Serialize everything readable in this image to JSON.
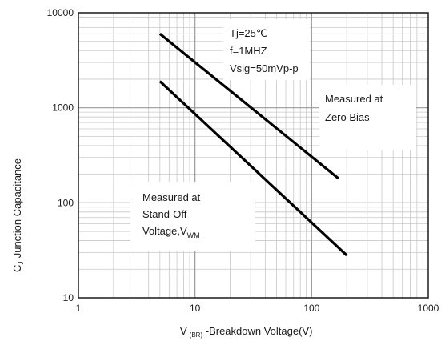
{
  "chart_data": {
    "type": "line",
    "title": "",
    "xlabel": "V(BR) -Breakdown Voltage(V)",
    "xlabel_main": "V",
    "xlabel_sub": "(BR)",
    "xlabel_rest": " -Breakdown Voltage(V)",
    "ylabel": "CJ-Junction Capacitance",
    "ylabel_main": "C",
    "ylabel_sub": "J",
    "ylabel_rest": "-Junction Capacitance",
    "xscale": "log",
    "yscale": "log",
    "xlim": [
      1,
      1000
    ],
    "ylim": [
      10,
      10000
    ],
    "grid": true,
    "x_tick_labels": [
      "1",
      "10",
      "100",
      "1000"
    ],
    "y_tick_labels": [
      "10",
      "100",
      "1000",
      "10000"
    ],
    "series": [
      {
        "x": [
          5,
          170
        ],
        "y": [
          6000,
          180
        ]
      },
      {
        "x": [
          5,
          200
        ],
        "y": [
          1900,
          28
        ]
      }
    ],
    "annotations": {
      "conditions": {
        "line1": "Tj=25℃",
        "line2": "f=1MHZ",
        "line3": "Vsig=50mVp-p"
      },
      "zero_bias": {
        "line1": "Measured at",
        "line2": "Zero Bias"
      },
      "standoff": {
        "line1": "Measured at",
        "line2": "Stand-Off",
        "line3": "Voltage,V",
        "line3_sub": "WM"
      }
    }
  }
}
